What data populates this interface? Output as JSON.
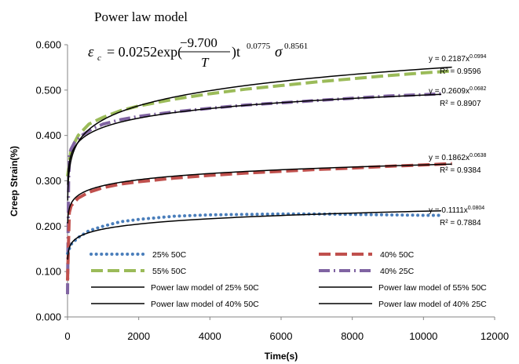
{
  "chart_data": {
    "type": "line",
    "title": "Power law model",
    "xlabel": "Time(s)",
    "ylabel": "Creep Strain(%)",
    "xlim": [
      0,
      12000
    ],
    "ylim": [
      0,
      0.6
    ],
    "x_ticks": [
      "0",
      "2000",
      "4000",
      "6000",
      "8000",
      "10000",
      "12000"
    ],
    "y_ticks": [
      "0.000",
      "0.100",
      "0.200",
      "0.300",
      "0.400",
      "0.500",
      "0.600"
    ],
    "equation": {
      "lhs": "ε",
      "lhs_sub": "c",
      "rhs_main": "= 0.0252exp(",
      "frac_num": "−9.700",
      "frac_den": "T",
      "rhs_close": ")t",
      "t_exp": "0.0775",
      "sigma": "σ",
      "sigma_exp": "0.8561"
    },
    "series": [
      {
        "name": "25% 50C",
        "color": "#4a7ebb",
        "style": "dotted",
        "x": [
          0,
          100,
          300,
          600,
          1000,
          1500,
          2000,
          3000,
          4000,
          5000,
          6000,
          7000,
          8000,
          9000,
          10000,
          10500
        ],
        "y": [
          0.14,
          0.16,
          0.175,
          0.19,
          0.2,
          0.21,
          0.215,
          0.222,
          0.225,
          0.226,
          0.227,
          0.227,
          0.226,
          0.225,
          0.224,
          0.224
        ]
      },
      {
        "name": "40% 50C",
        "color": "#c0504d",
        "style": "dashed",
        "x": [
          0,
          50,
          100,
          300,
          600,
          1000,
          1500,
          2000,
          3000,
          4000,
          5000,
          6000,
          7000,
          8000,
          9000,
          10000,
          10800
        ],
        "y": [
          0.08,
          0.23,
          0.245,
          0.262,
          0.275,
          0.285,
          0.293,
          0.298,
          0.306,
          0.312,
          0.317,
          0.321,
          0.325,
          0.328,
          0.332,
          0.335,
          0.338
        ]
      },
      {
        "name": "55% 50C",
        "color": "#9bbb59",
        "style": "dashed",
        "x": [
          0,
          50,
          100,
          300,
          600,
          1000,
          1500,
          2000,
          3000,
          4000,
          5000,
          6000,
          7000,
          8000,
          9000,
          10000,
          10800
        ],
        "y": [
          0.31,
          0.34,
          0.37,
          0.4,
          0.425,
          0.44,
          0.455,
          0.465,
          0.48,
          0.492,
          0.502,
          0.51,
          0.518,
          0.525,
          0.532,
          0.538,
          0.542
        ]
      },
      {
        "name": "40% 25C",
        "color": "#8064a2",
        "style": "dashdot",
        "x": [
          0,
          30,
          60,
          100,
          200,
          400,
          700,
          1000,
          1500,
          2000,
          3000,
          4000,
          5000,
          6000,
          7000,
          8000,
          9000,
          10000,
          10500
        ],
        "y": [
          0.05,
          0.3,
          0.36,
          0.37,
          0.385,
          0.4,
          0.415,
          0.425,
          0.435,
          0.442,
          0.452,
          0.46,
          0.467,
          0.472,
          0.477,
          0.482,
          0.487,
          0.49,
          0.492
        ]
      },
      {
        "name": "Power law model of 25% 50C",
        "color": "#000000",
        "style": "solid",
        "fit": {
          "a": 0.1111,
          "b": 0.0804
        },
        "x_range": [
          5,
          10500
        ]
      },
      {
        "name": "Power law model of 40% 50C",
        "color": "#000000",
        "style": "solid",
        "fit": {
          "a": 0.1862,
          "b": 0.0638
        },
        "x_range": [
          5,
          10800
        ]
      },
      {
        "name": "Power law model of 55% 50C",
        "color": "#000000",
        "style": "solid",
        "fit": {
          "a": 0.2187,
          "b": 0.0994
        },
        "x_range": [
          5,
          10800
        ]
      },
      {
        "name": "Power law model of 40% 25C",
        "color": "#000000",
        "style": "solid",
        "fit": {
          "a": 0.2609,
          "b": 0.0682
        },
        "x_range": [
          5,
          10500
        ]
      }
    ],
    "fit_labels": [
      {
        "eq_base": "y = 0.2187x",
        "eq_exp": "0.0994",
        "r2": "R² = 0.9596"
      },
      {
        "eq_base": "y = 0.2609x",
        "eq_exp": "0.0682",
        "r2": "R² = 0.8907"
      },
      {
        "eq_base": "y = 0.1862x",
        "eq_exp": "0.0638",
        "r2": "R² = 0.9384"
      },
      {
        "eq_base": "y = 0.1111x",
        "eq_exp": "0.0804",
        "r2": "R² = 0.7884"
      }
    ],
    "legend_position": "bottom-inside",
    "grid": false
  }
}
